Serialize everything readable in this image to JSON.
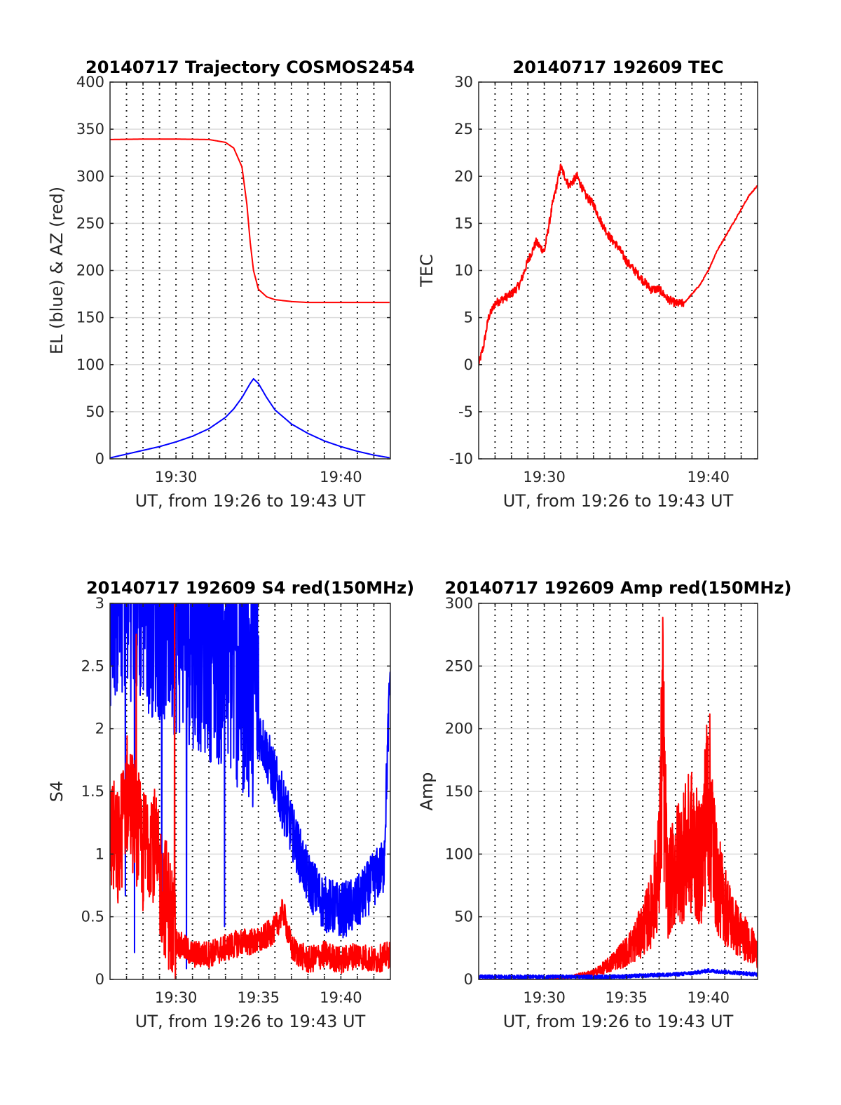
{
  "charts": [
    {
      "id": "trajectory",
      "title": "20140717 Trajectory COSMOS2454",
      "xlabel": "UT, from 19:26 to 19:43 UT",
      "ylabel": "EL (blue) & AZ (red)",
      "xlim": [
        0,
        17
      ],
      "ylim": [
        0,
        400
      ],
      "yticks": [
        0,
        50,
        100,
        150,
        200,
        250,
        300,
        350,
        400
      ],
      "ytick_labels": [
        "0",
        "50",
        "100",
        "150",
        "200",
        "250",
        "300",
        "350",
        "400"
      ],
      "xticks": [
        4,
        14
      ],
      "xtick_labels": [
        "19:30",
        "19:40"
      ],
      "vgrid_minutes": [
        1,
        2,
        3,
        4,
        5,
        6,
        7,
        8,
        9,
        10,
        11,
        12,
        13,
        14,
        15,
        16
      ]
    },
    {
      "id": "tec",
      "title": "20140717 192609 TEC",
      "xlabel": "UT, from 19:26 to 19:43 UT",
      "ylabel": "TEC",
      "xlim": [
        0,
        17
      ],
      "ylim": [
        -10,
        30
      ],
      "yticks": [
        -10,
        -5,
        0,
        5,
        10,
        15,
        20,
        25,
        30
      ],
      "ytick_labels": [
        "-10",
        "-5",
        "0",
        "5",
        "10",
        "15",
        "20",
        "25",
        "30"
      ],
      "xticks": [
        4,
        14
      ],
      "xtick_labels": [
        "19:30",
        "19:40"
      ],
      "vgrid_minutes": [
        1,
        2,
        3,
        4,
        5,
        6,
        7,
        8,
        9,
        10,
        11,
        12,
        13,
        14,
        15,
        16
      ]
    },
    {
      "id": "s4",
      "title": "20140717 192609 S4 red(150MHz)",
      "xlabel": "UT, from 19:26 to 19:43 UT",
      "ylabel": "S4",
      "xlim": [
        0,
        17
      ],
      "ylim": [
        0,
        3
      ],
      "yticks": [
        0,
        0.5,
        1,
        1.5,
        2,
        2.5,
        3
      ],
      "ytick_labels": [
        "0",
        "0.5",
        "1",
        "1.5",
        "2",
        "2.5",
        "3"
      ],
      "xticks": [
        4,
        9,
        14
      ],
      "xtick_labels": [
        "19:30",
        "19:35",
        "19:40"
      ],
      "vgrid_minutes": [
        1,
        2,
        3,
        4,
        5,
        6,
        7,
        8,
        9,
        10,
        11,
        12,
        13,
        14,
        15,
        16
      ]
    },
    {
      "id": "amp",
      "title": "20140717 192609 Amp red(150MHz)",
      "xlabel": "UT, from 19:26 to 19:43 UT",
      "ylabel": "Amp",
      "xlim": [
        0,
        17
      ],
      "ylim": [
        0,
        300
      ],
      "yticks": [
        0,
        50,
        100,
        150,
        200,
        250,
        300
      ],
      "ytick_labels": [
        "0",
        "50",
        "100",
        "150",
        "200",
        "250",
        "300"
      ],
      "xticks": [
        4,
        9,
        14
      ],
      "xtick_labels": [
        "19:30",
        "19:35",
        "19:40"
      ],
      "vgrid_minutes": [
        1,
        2,
        3,
        4,
        5,
        6,
        7,
        8,
        9,
        10,
        11,
        12,
        13,
        14,
        15,
        16
      ]
    }
  ],
  "chart_data": [
    {
      "type": "line",
      "title": "20140717 Trajectory COSMOS2454",
      "xlabel": "UT, from 19:26 to 19:43 UT",
      "ylabel": "EL (blue) & AZ (red)",
      "x_unit": "minutes after 19:26 UT",
      "xlim": [
        0,
        17
      ],
      "ylim": [
        0,
        400
      ],
      "grid": true,
      "series": [
        {
          "color": "#ff0000",
          "x": [
            0,
            2,
            4,
            6,
            7,
            7.5,
            8,
            8.3,
            8.5,
            8.7,
            9,
            9.5,
            10,
            11,
            12,
            13,
            14,
            15,
            16,
            17
          ],
          "y": [
            339,
            339.5,
            339.5,
            339,
            336,
            330,
            310,
            270,
            230,
            200,
            180,
            172,
            169,
            167,
            166,
            166,
            166,
            166,
            166,
            166
          ]
        },
        {
          "color": "#0000ff",
          "x": [
            0,
            1,
            2,
            3,
            4,
            5,
            6,
            7,
            7.5,
            8,
            8.5,
            8.7,
            9,
            9.5,
            10,
            11,
            12,
            13,
            14,
            15,
            16,
            17
          ],
          "y": [
            1,
            5,
            9,
            13,
            18,
            24,
            32,
            44,
            53,
            65,
            80,
            85,
            80,
            65,
            52,
            37,
            27,
            19,
            13,
            8,
            4,
            1
          ]
        }
      ]
    },
    {
      "type": "line",
      "title": "20140717 192609 TEC",
      "xlabel": "UT, from 19:26 to 19:43 UT",
      "ylabel": "TEC",
      "x_unit": "minutes after 19:26 UT",
      "xlim": [
        0,
        17
      ],
      "ylim": [
        -10,
        30
      ],
      "grid": true,
      "series": [
        {
          "color": "#ff0000",
          "x": [
            0,
            0.3,
            0.6,
            1,
            1.5,
            2,
            2.5,
            3,
            3.5,
            4,
            4.5,
            5,
            5.5,
            6,
            6.5,
            7,
            7.5,
            8,
            8.5,
            9,
            9.5,
            10,
            10.5,
            11,
            11.5,
            12,
            12.5,
            13,
            13.5,
            14,
            14.5,
            15,
            15.5,
            16,
            16.5,
            17
          ],
          "y": [
            0,
            2,
            5,
            6.5,
            7,
            7.5,
            8.5,
            11,
            13,
            12,
            17,
            21,
            19,
            20,
            18,
            17,
            15,
            13.5,
            12.5,
            11,
            10,
            9,
            8,
            8,
            7,
            6.5,
            6.5,
            7.5,
            8.5,
            10,
            12,
            13.5,
            15,
            16.5,
            18,
            19
          ]
        }
      ]
    },
    {
      "type": "line",
      "title": "20140717 192609 S4 red(150MHz)",
      "xlabel": "UT, from 19:26 to 19:43 UT",
      "ylabel": "S4",
      "x_unit": "minutes after 19:26 UT",
      "xlim": [
        0,
        17
      ],
      "ylim": [
        0,
        3
      ],
      "grid": true,
      "series": [
        {
          "color": "#0000ff",
          "note_values": "approximate envelope of noisy trace",
          "x": [
            0,
            1,
            2,
            3,
            4,
            5,
            6,
            7,
            8,
            9,
            10,
            11,
            12,
            13,
            14,
            15,
            16,
            16.6,
            17
          ],
          "y": [
            2.8,
            2.9,
            2.8,
            2.7,
            2.6,
            2.5,
            2.4,
            2.3,
            2.1,
            2.0,
            1.6,
            1.2,
            0.8,
            0.6,
            0.55,
            0.6,
            0.8,
            0.9,
            2.5
          ]
        },
        {
          "color": "#ff0000",
          "note_values": "approximate envelope of noisy trace",
          "x": [
            0,
            0.5,
            1,
            1.5,
            2,
            2.5,
            3,
            3.5,
            4,
            4.5,
            5,
            6,
            7,
            8,
            9,
            10,
            10.5,
            11,
            12,
            13,
            14,
            15,
            16,
            17
          ],
          "y": [
            1.2,
            1.0,
            1.5,
            1.3,
            1.0,
            1.2,
            0.8,
            0.6,
            0.3,
            0.25,
            0.2,
            0.2,
            0.25,
            0.3,
            0.3,
            0.4,
            0.55,
            0.25,
            0.15,
            0.2,
            0.15,
            0.2,
            0.15,
            0.2
          ]
        }
      ]
    },
    {
      "type": "line",
      "title": "20140717 192609 Amp red(150MHz)",
      "xlabel": "UT, from 19:26 to 19:43 UT",
      "ylabel": "Amp",
      "x_unit": "minutes after 19:26 UT",
      "xlim": [
        0,
        17
      ],
      "ylim": [
        0,
        300
      ],
      "grid": true,
      "series": [
        {
          "color": "#ff0000",
          "note_values": "approximate envelope of noisy trace",
          "x": [
            0,
            4,
            5,
            6,
            7,
            8,
            8.5,
            9,
            9.5,
            10,
            10.5,
            11,
            11.2,
            11.5,
            12,
            12.5,
            13,
            13.5,
            14,
            14.5,
            15,
            15.5,
            16,
            16.5,
            17
          ],
          "y": [
            0,
            0,
            1,
            3,
            5,
            12,
            18,
            22,
            30,
            40,
            55,
            90,
            200,
            70,
            90,
            100,
            110,
            90,
            150,
            80,
            60,
            45,
            35,
            30,
            20
          ]
        },
        {
          "color": "#0000ff",
          "x": [
            0,
            2,
            4,
            6,
            8,
            10,
            12,
            13,
            14,
            15,
            16,
            17
          ],
          "y": [
            2,
            2,
            2,
            2,
            2,
            3,
            4,
            5,
            7,
            6,
            5,
            4
          ]
        }
      ]
    }
  ]
}
